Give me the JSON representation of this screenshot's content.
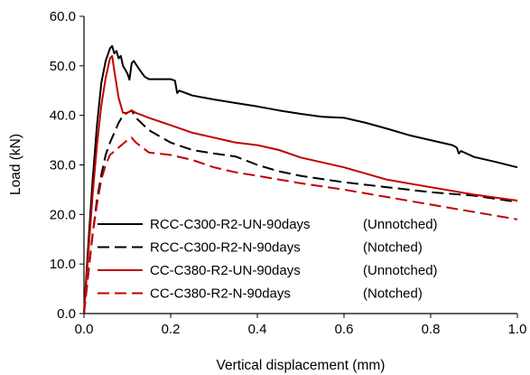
{
  "chart_data": {
    "type": "line",
    "title": "",
    "xlabel": "Vertical displacement (mm)",
    "ylabel": "Load (kN)",
    "xlim": [
      0.0,
      1.0
    ],
    "ylim": [
      0.0,
      60.0
    ],
    "xticks": [
      "0.0",
      "0.2",
      "0.4",
      "0.6",
      "0.8",
      "1.0"
    ],
    "yticks": [
      "0.0",
      "10.0",
      "20.0",
      "30.0",
      "40.0",
      "50.0",
      "60.0"
    ],
    "grid": false,
    "legend_position": "lower-left",
    "series": [
      {
        "name": "RCC-C300-R2-UN-90days",
        "note": "(Unnotched)",
        "color": "#000000",
        "dash": "solid",
        "x": [
          0.0,
          0.01,
          0.02,
          0.03,
          0.04,
          0.05,
          0.06,
          0.065,
          0.07,
          0.075,
          0.08,
          0.085,
          0.09,
          0.1,
          0.105,
          0.11,
          0.115,
          0.12,
          0.13,
          0.14,
          0.15,
          0.2,
          0.21,
          0.215,
          0.22,
          0.25,
          0.3,
          0.35,
          0.4,
          0.45,
          0.5,
          0.55,
          0.6,
          0.65,
          0.7,
          0.75,
          0.8,
          0.85,
          0.86,
          0.865,
          0.87,
          0.9,
          0.95,
          1.0
        ],
        "y": [
          0.0,
          14.0,
          27.0,
          38.0,
          46.5,
          51.0,
          53.5,
          54.0,
          52.5,
          53.0,
          51.5,
          52.0,
          50.0,
          48.5,
          47.2,
          50.5,
          51.0,
          50.3,
          49.0,
          47.8,
          47.3,
          47.3,
          47.0,
          44.5,
          45.0,
          44.0,
          43.2,
          42.5,
          41.8,
          41.0,
          40.3,
          39.7,
          39.5,
          38.5,
          37.3,
          36.0,
          35.0,
          34.0,
          33.5,
          32.3,
          32.8,
          31.6,
          30.6,
          29.5
        ]
      },
      {
        "name": "RCC-C300-R2-N-90days",
        "note": "(Notched)",
        "color": "#000000",
        "dash": "dashed",
        "x": [
          0.0,
          0.01,
          0.02,
          0.03,
          0.04,
          0.05,
          0.06,
          0.07,
          0.08,
          0.09,
          0.1,
          0.11,
          0.12,
          0.15,
          0.2,
          0.25,
          0.3,
          0.35,
          0.4,
          0.45,
          0.5,
          0.6,
          0.7,
          0.8,
          0.9,
          1.0
        ],
        "y": [
          0.0,
          8.0,
          16.0,
          23.0,
          28.0,
          32.0,
          34.5,
          36.5,
          38.5,
          40.0,
          40.5,
          41.0,
          39.5,
          37.0,
          34.5,
          33.0,
          32.3,
          31.7,
          30.0,
          28.7,
          27.8,
          26.5,
          25.5,
          24.5,
          23.8,
          22.5
        ]
      },
      {
        "name": "CC-C380-R2-UN-90days",
        "note": "(Unnotched)",
        "color": "#c00000",
        "dash": "solid",
        "x": [
          0.0,
          0.01,
          0.02,
          0.03,
          0.04,
          0.05,
          0.06,
          0.065,
          0.07,
          0.08,
          0.09,
          0.1,
          0.11,
          0.12,
          0.15,
          0.2,
          0.25,
          0.3,
          0.35,
          0.4,
          0.45,
          0.5,
          0.6,
          0.7,
          0.8,
          0.9,
          1.0
        ],
        "y": [
          0.0,
          12.0,
          24.0,
          34.0,
          42.0,
          47.5,
          51.5,
          52.0,
          49.0,
          43.5,
          40.5,
          40.5,
          41.0,
          40.5,
          39.5,
          38.0,
          36.5,
          35.5,
          34.5,
          34.0,
          33.0,
          31.5,
          29.5,
          27.0,
          25.5,
          24.0,
          22.8
        ]
      },
      {
        "name": "CC-C380-R2-N-90days",
        "note": "(Notched)",
        "color": "#c00000",
        "dash": "dashed",
        "x": [
          0.0,
          0.01,
          0.02,
          0.03,
          0.04,
          0.05,
          0.06,
          0.08,
          0.1,
          0.11,
          0.12,
          0.15,
          0.2,
          0.25,
          0.3,
          0.35,
          0.4,
          0.5,
          0.6,
          0.7,
          0.8,
          0.9,
          1.0
        ],
        "y": [
          0.0,
          8.0,
          16.0,
          22.0,
          27.0,
          30.0,
          32.0,
          33.5,
          35.0,
          35.5,
          34.5,
          32.5,
          32.0,
          31.0,
          29.5,
          28.5,
          27.8,
          26.3,
          25.0,
          23.5,
          22.0,
          20.5,
          19.0
        ]
      }
    ]
  }
}
